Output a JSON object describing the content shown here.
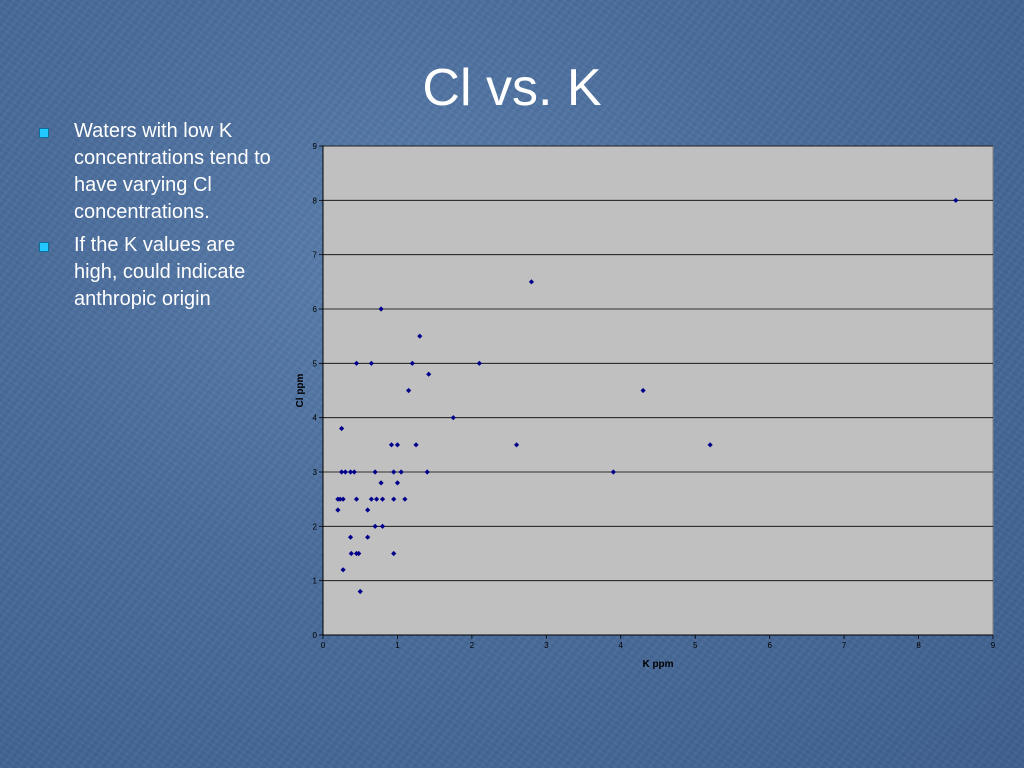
{
  "slide": {
    "title": "Cl vs. K",
    "bullets": [
      "Waters with low K concentrations tend to have varying Cl concentrations.",
      "If the K values are high, could indicate anthropic origin"
    ]
  },
  "colors": {
    "plot_background": "#c0c0c0",
    "marker": "#00008b",
    "bullet": "#22c8ff"
  },
  "chart_data": {
    "type": "scatter",
    "xlabel": "K ppm",
    "ylabel": "Cl ppm",
    "xlim": [
      0,
      9
    ],
    "ylim": [
      0,
      9
    ],
    "x_ticks": [
      "0",
      "1",
      "2",
      "3",
      "4",
      "5",
      "6",
      "7",
      "8",
      "9"
    ],
    "y_ticks": [
      "0",
      "1",
      "2",
      "3",
      "4",
      "5",
      "6",
      "7",
      "8",
      "9"
    ],
    "grid": "horizontal",
    "legend": "none",
    "points": [
      [
        0.2,
        2.3
      ],
      [
        0.2,
        2.5
      ],
      [
        0.23,
        2.5
      ],
      [
        0.27,
        2.5
      ],
      [
        0.25,
        3.0
      ],
      [
        0.3,
        3.0
      ],
      [
        0.37,
        3.0
      ],
      [
        0.42,
        3.0
      ],
      [
        0.25,
        3.8
      ],
      [
        0.27,
        1.2
      ],
      [
        0.37,
        1.8
      ],
      [
        0.38,
        1.5
      ],
      [
        0.45,
        1.5
      ],
      [
        0.48,
        1.5
      ],
      [
        0.5,
        0.8
      ],
      [
        0.45,
        2.5
      ],
      [
        0.45,
        5.0
      ],
      [
        0.6,
        1.8
      ],
      [
        0.6,
        2.3
      ],
      [
        0.65,
        2.5
      ],
      [
        0.7,
        2.0
      ],
      [
        0.72,
        2.5
      ],
      [
        0.7,
        3.0
      ],
      [
        0.65,
        5.0
      ],
      [
        0.78,
        2.8
      ],
      [
        0.8,
        2.5
      ],
      [
        0.8,
        2.0
      ],
      [
        0.78,
        6.0
      ],
      [
        0.92,
        3.5
      ],
      [
        0.95,
        1.5
      ],
      [
        0.95,
        2.5
      ],
      [
        0.95,
        3.0
      ],
      [
        1.0,
        2.8
      ],
      [
        1.0,
        3.5
      ],
      [
        1.05,
        3.0
      ],
      [
        1.1,
        2.5
      ],
      [
        1.15,
        4.5
      ],
      [
        1.2,
        5.0
      ],
      [
        1.25,
        3.5
      ],
      [
        1.3,
        5.5
      ],
      [
        1.4,
        3.0
      ],
      [
        1.42,
        4.8
      ],
      [
        1.75,
        4.0
      ],
      [
        2.1,
        5.0
      ],
      [
        2.6,
        3.5
      ],
      [
        2.8,
        6.5
      ],
      [
        3.9,
        3.0
      ],
      [
        4.3,
        4.5
      ],
      [
        5.2,
        3.5
      ],
      [
        8.5,
        8.0
      ]
    ]
  }
}
